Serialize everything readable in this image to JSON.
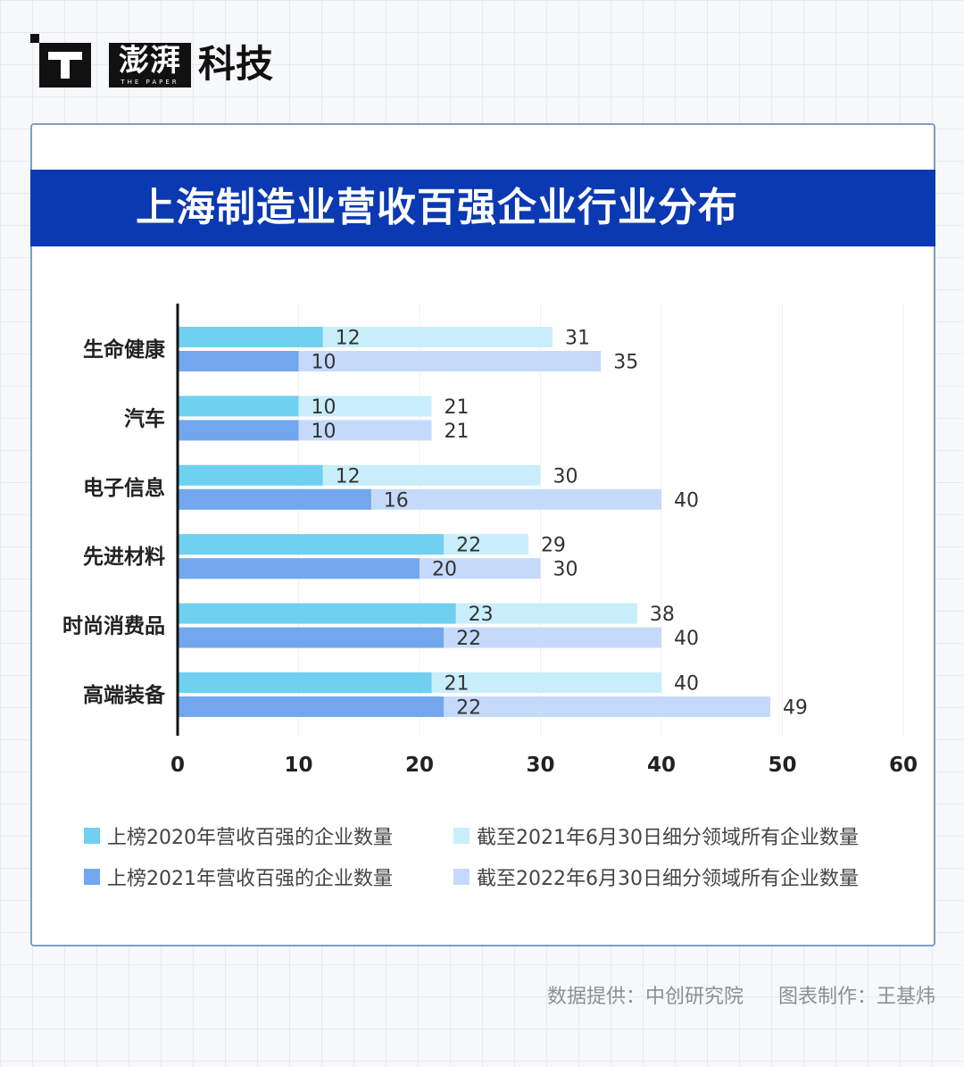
{
  "brand": {
    "logo_text": "澎湃",
    "logo_sub": "THE PAPER",
    "section": "科技"
  },
  "chart_data": {
    "type": "bar",
    "orientation": "horizontal",
    "title": "上海制造业营收百强企业行业分布",
    "categories": [
      "生命健康",
      "汽车",
      "电子信息",
      "先进材料",
      "时尚消费品",
      "高端装备"
    ],
    "xlim": [
      0,
      60
    ],
    "x_ticks": [
      0,
      10,
      20,
      30,
      40,
      50,
      60
    ],
    "grid": true,
    "legend_position": "bottom",
    "series": [
      {
        "name": "上榜2020年营收百强的企业数量",
        "values": [
          12,
          10,
          12,
          22,
          23,
          21
        ],
        "color": "#6fd0ef"
      },
      {
        "name": "截至2021年6月30日细分领域所有企业数量",
        "values": [
          31,
          21,
          30,
          29,
          38,
          40
        ],
        "color": "#c9eefb"
      },
      {
        "name": "上榜2021年营收百强的企业数量",
        "values": [
          10,
          10,
          16,
          20,
          22,
          22
        ],
        "color": "#72a7ee"
      },
      {
        "name": "截至2022年6月30日细分领域所有企业数量",
        "values": [
          35,
          21,
          40,
          30,
          40,
          49
        ],
        "color": "#c5dafb"
      }
    ]
  },
  "source": {
    "data_provider": "数据提供：中创研究院",
    "chart_maker": "图表制作：王基炜"
  }
}
